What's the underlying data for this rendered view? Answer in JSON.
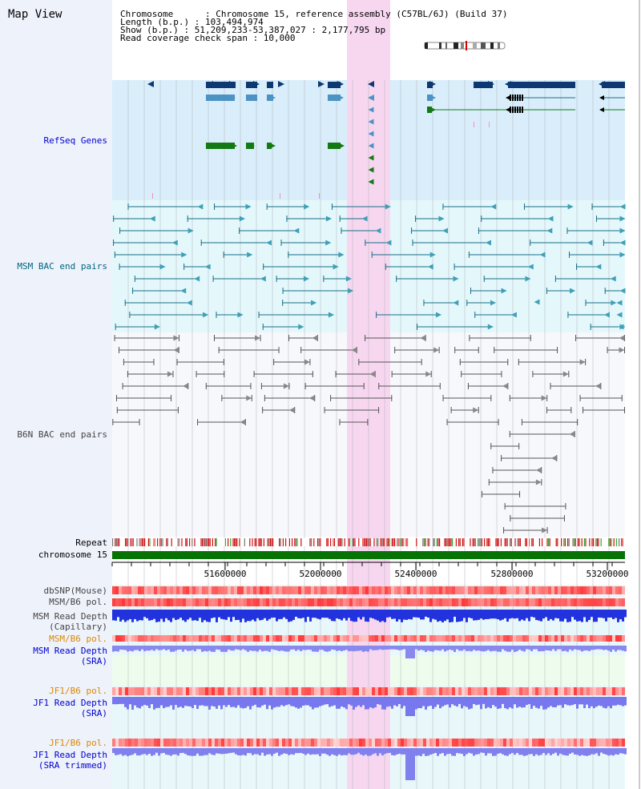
{
  "title": "Map View",
  "info": {
    "chromosome_line": "Chromosome      : Chromosome 15, reference assembly (C57BL/6J) (Build 37)",
    "length_line": "Length (b.p.) : 103,494,974",
    "show_line": "Show (b.p.) : 51,209,233-53,387,027 : 2,177,795 bp",
    "coverage_line": "Read coverage check span : 10,000"
  },
  "tracks": {
    "refseq": "RefSeq Genes",
    "msm_bac": "MSM BAC end pairs",
    "b6n_bac": "B6N BAC end pairs",
    "repeat": "Repeat",
    "chromosome": "chromosome 15",
    "dbsnp": "dbSNP(Mouse)",
    "msm_b6_pol_1": "MSM/B6 pol.",
    "msm_depth_cap_1": "MSM Read Depth",
    "msm_depth_cap_2": "(Capillary)",
    "msm_b6_pol_2": "MSM/B6 pol.",
    "msm_depth_sra_1": "MSM Read Depth",
    "msm_depth_sra_2": "(SRA)",
    "jf1_pol_1": "JF1/B6 pol.",
    "jf1_depth_sra_1": "JF1 Read Depth",
    "jf1_depth_sra_2": "(SRA)",
    "jf1_pol_2": "JF1/B6 pol.",
    "jf1_depth_trim_1": "JF1 Read Depth",
    "jf1_depth_trim_2": "(SRA trimmed)"
  },
  "axis": {
    "ticks": [
      "51600000",
      "52000000",
      "52400000",
      "52800000",
      "53200000"
    ]
  },
  "colors": {
    "refseq_bg": "#d9eefa",
    "msm_bg": "#e4f8fb",
    "highlight": "#f7d7f0",
    "gene_dark": "#0d3872",
    "gene_mid": "#4c93c4",
    "gene_green": "#137a13",
    "msm_line": "#1a6e87",
    "b6n_line": "#555555",
    "chrom_green": "#077307",
    "label_refseq": "#0000cc",
    "label_msm": "#006680",
    "label_b6n": "#444444",
    "label_orange": "#dd8800"
  }
}
